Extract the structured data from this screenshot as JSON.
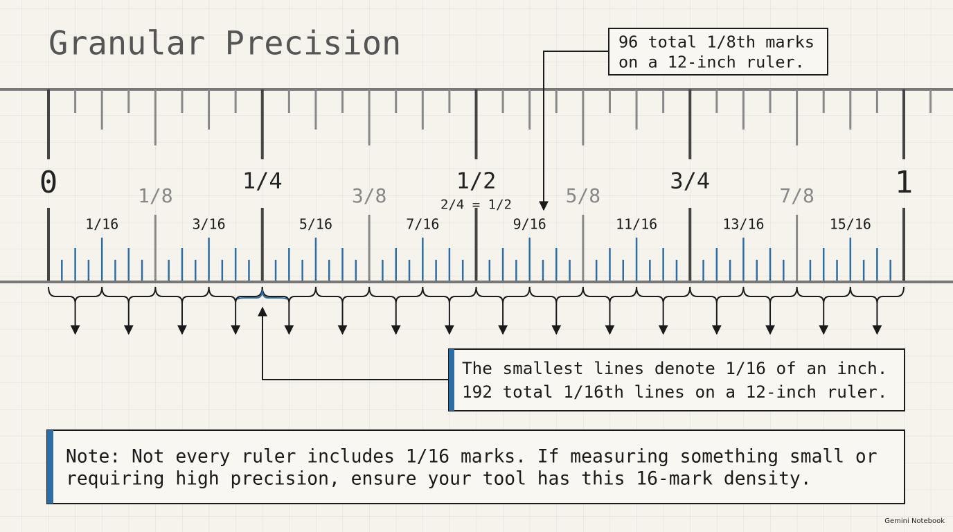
{
  "title": "Granular Precision",
  "callout_top": {
    "lines": [
      "96 total 1/8th marks",
      "on a 12-inch ruler."
    ]
  },
  "ruler": {
    "major_labels": [
      "0",
      "1/4",
      "1/2",
      "3/4",
      "1"
    ],
    "eighth_labels": [
      "1/8",
      "3/8",
      "5/8",
      "7/8"
    ],
    "equivalence": "2/4 = 1/2",
    "sixteenth_labels": [
      "1/16",
      "3/16",
      "5/16",
      "7/16",
      "9/16",
      "11/16",
      "13/16",
      "15/16"
    ]
  },
  "callout_bottom": {
    "lines": [
      "The smallest lines denote 1/16 of an inch.",
      "192 total 1/16th lines on a 12-inch ruler."
    ]
  },
  "note": {
    "lines": [
      "Note: Not every ruler includes 1/16 marks. If measuring something small or",
      "requiring high precision, ensure your tool has this 16-mark density."
    ]
  },
  "footer": "Gemini Notebook"
}
